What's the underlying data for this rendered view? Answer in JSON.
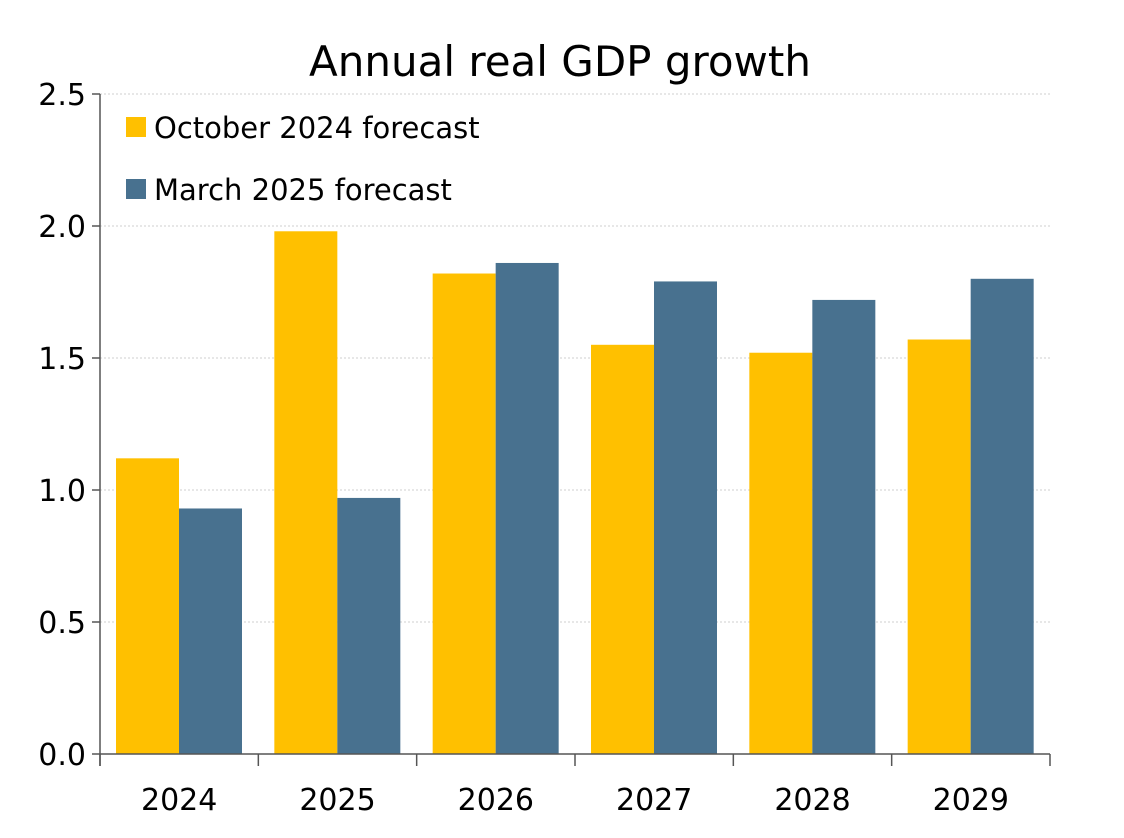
{
  "chart_data": {
    "type": "bar",
    "title": "Annual real GDP growth",
    "xlabel": "",
    "ylabel": "",
    "categories": [
      "2024",
      "2025",
      "2026",
      "2027",
      "2028",
      "2029"
    ],
    "series": [
      {
        "name": "October 2024 forecast",
        "color": "#FFC000",
        "values": [
          1.12,
          1.98,
          1.82,
          1.55,
          1.52,
          1.57
        ]
      },
      {
        "name": "March 2025 forecast",
        "color": "#48718F",
        "values": [
          0.93,
          0.97,
          1.86,
          1.79,
          1.72,
          1.8
        ]
      }
    ],
    "ylim": [
      0,
      2.5
    ],
    "yticks": [
      "0.0",
      "0.5",
      "1.0",
      "1.5",
      "2.0",
      "2.5"
    ],
    "grid": true,
    "legend_position": "top-left"
  }
}
